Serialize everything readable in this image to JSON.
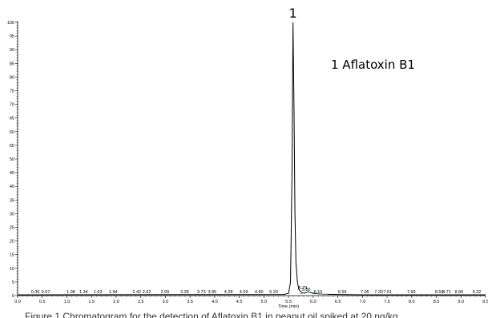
{
  "chart_data": {
    "type": "line",
    "title": "",
    "xlabel": "Time (min)",
    "ylabel": "",
    "xlim": [
      0.0,
      9.5
    ],
    "ylim": [
      0,
      100
    ],
    "x_ticks": [
      "0.0",
      "0.5",
      "1.0",
      "1.5",
      "2.0",
      "2.5",
      "3.0",
      "3.5",
      "4.0",
      "4.5",
      "5.0",
      "5.5",
      "6.0",
      "6.5",
      "7.0",
      "7.5",
      "8.0",
      "8.5",
      "9.0",
      "9.5"
    ],
    "y_ticks": [
      "0",
      "5",
      "10",
      "15",
      "20",
      "25",
      "30",
      "35",
      "40",
      "45",
      "50",
      "55",
      "60",
      "65",
      "70",
      "75",
      "80",
      "85",
      "90",
      "95",
      "100"
    ],
    "peak_label": "1",
    "legend_text": "1 Aflatoxin B1",
    "caption": "Figure 1 Chromatogram for the detection of Aflatoxin B1 in peanut oil spiked at 20 ng/kg",
    "series": [
      {
        "name": "",
        "x": [
          0.0,
          5.4,
          5.5,
          5.54,
          5.57,
          5.59,
          5.61,
          5.63,
          5.65,
          5.68,
          5.71,
          5.76,
          5.82,
          5.9,
          6.0,
          6.2,
          6.5,
          7.0,
          8.0,
          9.5
        ],
        "y": [
          0.3,
          0.4,
          0.8,
          5,
          45,
          100,
          70,
          30,
          12,
          5,
          2.2,
          1.2,
          0.9,
          1.4,
          0.8,
          0.5,
          0.4,
          0.3,
          0.3,
          0.3
        ]
      }
    ],
    "rt_labels": [
      {
        "x": 0.36,
        "text": "0.36"
      },
      {
        "x": 0.57,
        "text": "0.57"
      },
      {
        "x": 1.08,
        "text": "1.08"
      },
      {
        "x": 1.34,
        "text": "1.34"
      },
      {
        "x": 1.63,
        "text": "1.63"
      },
      {
        "x": 1.94,
        "text": "1.94"
      },
      {
        "x": 2.42,
        "text": "2.42"
      },
      {
        "x": 2.62,
        "text": "2.62"
      },
      {
        "x": 2.99,
        "text": "2.99"
      },
      {
        "x": 3.39,
        "text": "3.39"
      },
      {
        "x": 3.73,
        "text": "3.73"
      },
      {
        "x": 3.95,
        "text": "3.95"
      },
      {
        "x": 4.28,
        "text": "4.28"
      },
      {
        "x": 4.59,
        "text": "4.59"
      },
      {
        "x": 4.9,
        "text": "4.90"
      },
      {
        "x": 5.2,
        "text": "5.20"
      },
      {
        "x": 5.79,
        "text": "5.79"
      },
      {
        "x": 5.86,
        "text": "5.86"
      },
      {
        "x": 6.1,
        "text": "6.10"
      },
      {
        "x": 6.59,
        "text": "6.59"
      },
      {
        "x": 7.05,
        "text": "7.05"
      },
      {
        "x": 7.33,
        "text": "7.33"
      },
      {
        "x": 7.51,
        "text": "7.51"
      },
      {
        "x": 7.99,
        "text": "7.99"
      },
      {
        "x": 8.56,
        "text": "8.56"
      },
      {
        "x": 8.71,
        "text": "8.71"
      },
      {
        "x": 8.96,
        "text": "8.96"
      },
      {
        "x": 9.32,
        "text": "9.32"
      }
    ]
  }
}
